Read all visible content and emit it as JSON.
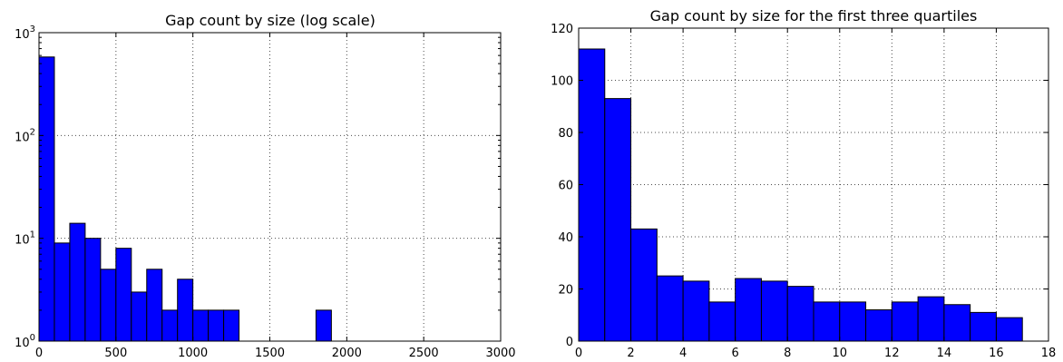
{
  "chart_data": [
    {
      "type": "bar",
      "title": "Gap count by size (log scale)",
      "xlabel": "",
      "ylabel": "",
      "yscale": "log",
      "xlim": [
        0,
        3000
      ],
      "ylim": [
        1,
        1000
      ],
      "grid": true,
      "bin_width": 100,
      "bins": [
        {
          "x0": 0,
          "value": 580
        },
        {
          "x0": 100,
          "value": 9
        },
        {
          "x0": 200,
          "value": 14
        },
        {
          "x0": 300,
          "value": 10
        },
        {
          "x0": 400,
          "value": 5
        },
        {
          "x0": 500,
          "value": 8
        },
        {
          "x0": 600,
          "value": 3
        },
        {
          "x0": 700,
          "value": 5
        },
        {
          "x0": 800,
          "value": 2
        },
        {
          "x0": 900,
          "value": 4
        },
        {
          "x0": 1000,
          "value": 2
        },
        {
          "x0": 1100,
          "value": 2
        },
        {
          "x0": 1200,
          "value": 2
        },
        {
          "x0": 1800,
          "value": 2
        }
      ],
      "xticks": [
        "0",
        "500",
        "1000",
        "1500",
        "2000",
        "2500",
        "3000"
      ],
      "xtick_values": [
        0,
        500,
        1000,
        1500,
        2000,
        2500,
        3000
      ],
      "ytick_values": [
        1,
        10,
        100,
        1000
      ],
      "ytick_base": "10",
      "ytick_exponents": [
        "0",
        "1",
        "2",
        "3"
      ],
      "bar_color": "#0000ff"
    },
    {
      "type": "bar",
      "title": "Gap count by size for the first three quartiles",
      "xlabel": "",
      "ylabel": "",
      "xlim": [
        0,
        18
      ],
      "ylim": [
        0,
        120
      ],
      "grid": true,
      "bin_width": 1,
      "bins": [
        {
          "x0": 0,
          "value": 112
        },
        {
          "x0": 1,
          "value": 93
        },
        {
          "x0": 2,
          "value": 43
        },
        {
          "x0": 3,
          "value": 25
        },
        {
          "x0": 4,
          "value": 23
        },
        {
          "x0": 5,
          "value": 15
        },
        {
          "x0": 6,
          "value": 24
        },
        {
          "x0": 7,
          "value": 23
        },
        {
          "x0": 8,
          "value": 21
        },
        {
          "x0": 9,
          "value": 15
        },
        {
          "x0": 10,
          "value": 15
        },
        {
          "x0": 11,
          "value": 12
        },
        {
          "x0": 12,
          "value": 15
        },
        {
          "x0": 13,
          "value": 17
        },
        {
          "x0": 14,
          "value": 14
        },
        {
          "x0": 15,
          "value": 11
        },
        {
          "x0": 16,
          "value": 9
        }
      ],
      "xticks": [
        "0",
        "2",
        "4",
        "6",
        "8",
        "10",
        "12",
        "14",
        "16",
        "18"
      ],
      "xtick_values": [
        0,
        2,
        4,
        6,
        8,
        10,
        12,
        14,
        16,
        18
      ],
      "yticks": [
        "0",
        "20",
        "40",
        "60",
        "80",
        "100",
        "120"
      ],
      "ytick_values": [
        0,
        20,
        40,
        60,
        80,
        100,
        120
      ],
      "bar_color": "#0000ff"
    }
  ]
}
